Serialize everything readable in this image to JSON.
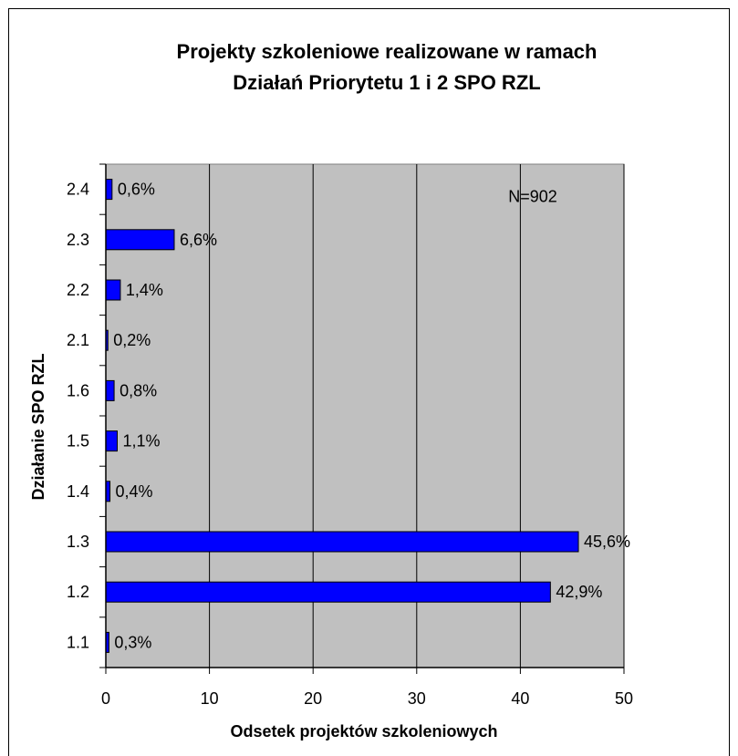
{
  "chart_data": {
    "type": "bar",
    "orientation": "horizontal",
    "title_lines": [
      "Projekty szkoleniowe realizowane w ramach",
      "Działań Priorytetu 1 i 2 SPO RZL"
    ],
    "xlabel": "Odsetek projektów szkoleniowych",
    "ylabel": "Działanie SPO RZL",
    "annotation": "N=902",
    "categories": [
      "1.1",
      "1.2",
      "1.3",
      "1.4",
      "1.5",
      "1.6",
      "2.1",
      "2.2",
      "2.3",
      "2.4"
    ],
    "values": [
      0.3,
      42.9,
      45.6,
      0.4,
      1.1,
      0.8,
      0.2,
      1.4,
      6.6,
      0.6
    ],
    "value_labels": [
      "0,3%",
      "42,9%",
      "45,6%",
      "0,4%",
      "1,1%",
      "0,8%",
      "0,2%",
      "1,4%",
      "6,6%",
      "0,6%"
    ],
    "xlim": [
      0,
      50
    ],
    "xticks": [
      0,
      10,
      20,
      30,
      40,
      50
    ],
    "grid": "vertical",
    "colors": {
      "bar": "#0000ff",
      "plot_bg": "#c0c0c0",
      "axis": "#000000",
      "frame": "#808080"
    }
  }
}
